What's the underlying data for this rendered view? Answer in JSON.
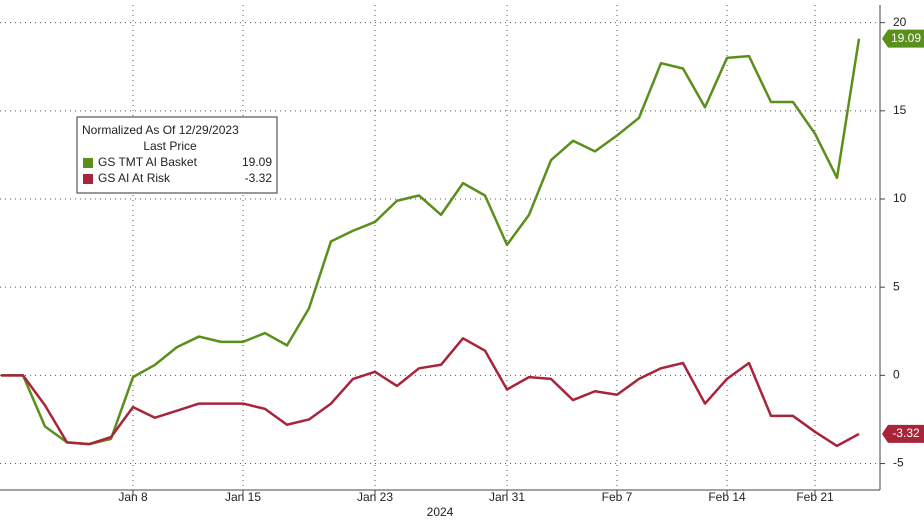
{
  "chart_data": {
    "type": "line",
    "legend_title": "Normalized As Of 12/29/2023",
    "legend_subtitle": "Last Price",
    "xlabel": "2024",
    "categories": [
      null,
      null,
      null,
      null,
      null,
      null,
      "Jan 8",
      null,
      null,
      null,
      null,
      "Jan 15",
      null,
      null,
      null,
      null,
      null,
      "Jan 23",
      null,
      null,
      null,
      null,
      null,
      "Jan 31",
      null,
      null,
      null,
      null,
      "Feb 7",
      null,
      null,
      null,
      null,
      "Feb 14",
      null,
      null,
      null,
      "Feb 21",
      null,
      null
    ],
    "series": [
      {
        "name": "GS TMT AI Basket",
        "color": "#5a8f1c",
        "values": [
          0,
          0,
          -2.9,
          -3.8,
          -3.9,
          -3.6,
          -0.1,
          0.6,
          1.6,
          2.2,
          1.9,
          1.9,
          2.4,
          1.7,
          3.8,
          7.6,
          8.2,
          8.7,
          9.9,
          10.2,
          9.1,
          10.9,
          10.2,
          7.4,
          9.1,
          12.2,
          13.3,
          12.7,
          13.6,
          14.6,
          17.7,
          17.4,
          15.2,
          18.0,
          18.1,
          15.5,
          15.5,
          13.7,
          11.2,
          19.09
        ]
      },
      {
        "name": "GS AI At Risk",
        "color": "#a8243a",
        "values": [
          0,
          0,
          -1.7,
          -3.8,
          -3.9,
          -3.5,
          -1.8,
          -2.4,
          -2.0,
          -1.6,
          -1.6,
          -1.6,
          -1.9,
          -2.8,
          -2.5,
          -1.6,
          -0.2,
          0.2,
          -0.6,
          0.4,
          0.6,
          2.1,
          1.4,
          -0.8,
          -0.1,
          -0.2,
          -1.4,
          -0.9,
          -1.1,
          -0.2,
          0.4,
          0.7,
          -1.6,
          -0.2,
          0.7,
          -2.3,
          -2.3,
          -3.2,
          -4.0,
          -3.32
        ]
      }
    ],
    "ylim": [
      -6.5,
      21
    ],
    "yticks": [
      20,
      15,
      10,
      5,
      0,
      -5
    ],
    "grid": true
  }
}
